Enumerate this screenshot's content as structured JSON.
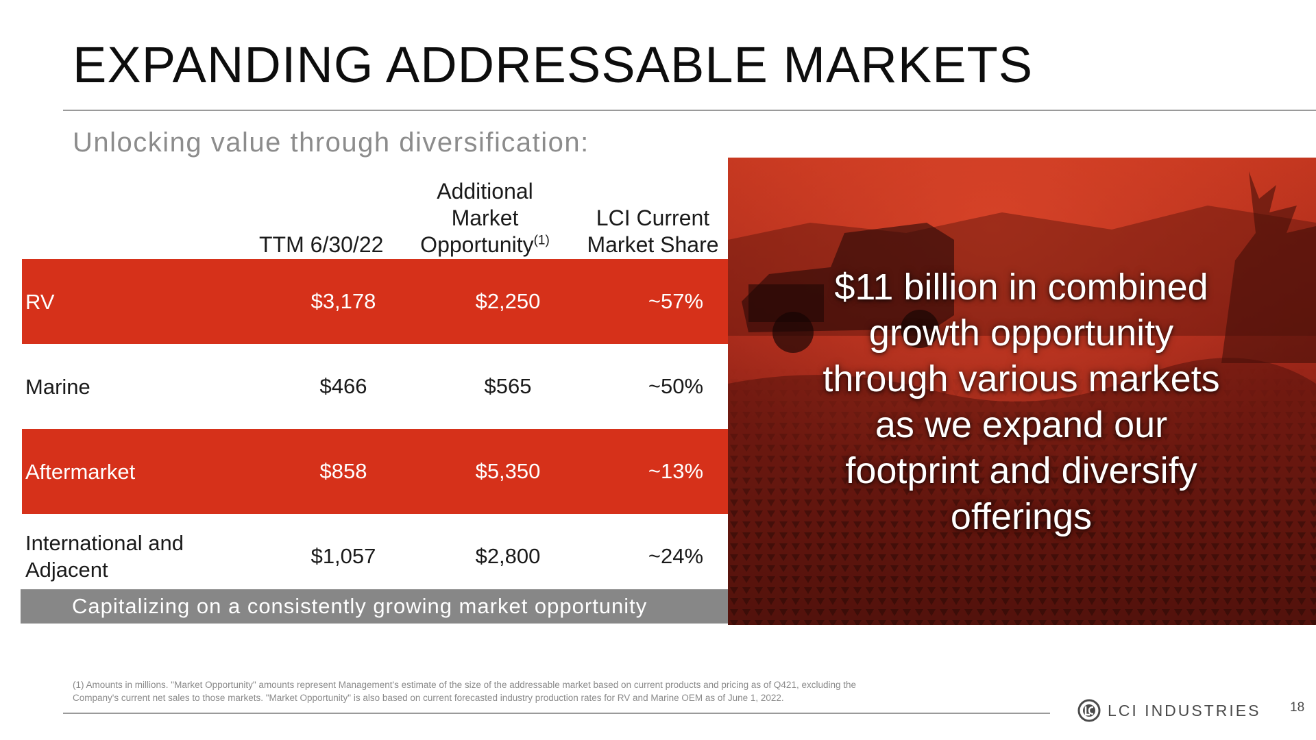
{
  "title": "EXPANDING ADDRESSABLE MARKETS",
  "subtitle": "Unlocking value through diversification:",
  "table": {
    "headers": {
      "ttm": "TTM 6/30/22",
      "opportunity_line1": "Additional",
      "opportunity_line2": "Market",
      "opportunity_line3": "Opportunity",
      "opportunity_note": "(1)",
      "share_line1": "LCI Current",
      "share_line2": "Market Share"
    },
    "rows": [
      {
        "label": "RV",
        "ttm": "$3,178",
        "opportunity": "$2,250",
        "share": "~57%"
      },
      {
        "label": "Marine",
        "ttm": "$466",
        "opportunity": "$565",
        "share": "~50%"
      },
      {
        "label": "Aftermarket",
        "ttm": "$858",
        "opportunity": "$5,350",
        "share": "~13%"
      },
      {
        "label": "International and Adjacent",
        "ttm": "$1,057",
        "opportunity": "$2,800",
        "share": "~24%"
      }
    ]
  },
  "banner": "Capitalizing on a consistently growing market opportunity",
  "callout": {
    "line1": "$11 billion in combined",
    "line2": "growth opportunity",
    "line3": "through various markets",
    "line4": "as we expand our",
    "line5": "footprint and diversify",
    "line6": "offerings"
  },
  "footnote": {
    "line1": "(1) Amounts in millions. \"Market Opportunity\" amounts represent Management's estimate of the size of the addressable market based on current products and pricing as of Q421, excluding the",
    "line2": "Company's current net sales to those markets.  \"Market Opportunity\" is also based on current forecasted industry production rates for RV and Marine OEM as of June 1, 2022."
  },
  "brand": {
    "name": "LCI INDUSTRIES",
    "logo_icon": "lci-logo-icon",
    "accent_color": "#d6311a",
    "banner_color": "#878787"
  },
  "page_number": "18"
}
